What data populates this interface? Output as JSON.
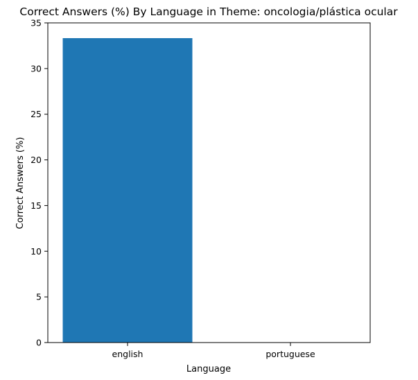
{
  "chart_data": {
    "type": "bar",
    "title": "Correct Answers (%) By Language in Theme: oncologia/plástica ocular",
    "xlabel": "Language",
    "ylabel": "Correct Answers (%)",
    "categories": [
      "english",
      "portuguese"
    ],
    "values": [
      33.33,
      0
    ],
    "ylim": [
      0,
      35
    ],
    "yticks": [
      0,
      5,
      10,
      15,
      20,
      25,
      30,
      35
    ],
    "grid": false,
    "legend": "none",
    "colors": {
      "bar": "#1f77b4",
      "axes": "#000000",
      "background": "#ffffff"
    }
  }
}
